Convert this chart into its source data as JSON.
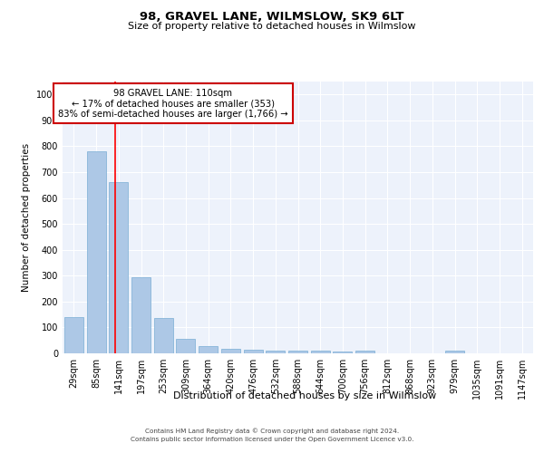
{
  "title1": "98, GRAVEL LANE, WILMSLOW, SK9 6LT",
  "title2": "Size of property relative to detached houses in Wilmslow",
  "xlabel": "Distribution of detached houses by size in Wilmslow",
  "ylabel": "Number of detached properties",
  "categories": [
    "29sqm",
    "85sqm",
    "141sqm",
    "197sqm",
    "253sqm",
    "309sqm",
    "364sqm",
    "420sqm",
    "476sqm",
    "532sqm",
    "588sqm",
    "644sqm",
    "700sqm",
    "756sqm",
    "812sqm",
    "868sqm",
    "923sqm",
    "979sqm",
    "1035sqm",
    "1091sqm",
    "1147sqm"
  ],
  "values": [
    140,
    780,
    660,
    295,
    138,
    55,
    28,
    18,
    15,
    10,
    10,
    10,
    8,
    10,
    0,
    0,
    0,
    10,
    0,
    0,
    0
  ],
  "bar_color": "#adc8e6",
  "bar_edge_color": "#7aadd4",
  "red_line_x": 1.83,
  "annotation_text": "98 GRAVEL LANE: 110sqm\n← 17% of detached houses are smaller (353)\n83% of semi-detached houses are larger (1,766) →",
  "annotation_box_color": "#ffffff",
  "annotation_box_edge": "#cc0000",
  "footer1": "Contains HM Land Registry data © Crown copyright and database right 2024.",
  "footer2": "Contains public sector information licensed under the Open Government Licence v3.0.",
  "ylim": [
    0,
    1050
  ],
  "yticks": [
    0,
    100,
    200,
    300,
    400,
    500,
    600,
    700,
    800,
    900,
    1000
  ],
  "background_color": "#edf2fb",
  "title1_fontsize": 9.5,
  "title2_fontsize": 8.0,
  "ylabel_fontsize": 7.5,
  "xlabel_fontsize": 8.0,
  "tick_fontsize": 7.0,
  "footer_fontsize": 5.2
}
